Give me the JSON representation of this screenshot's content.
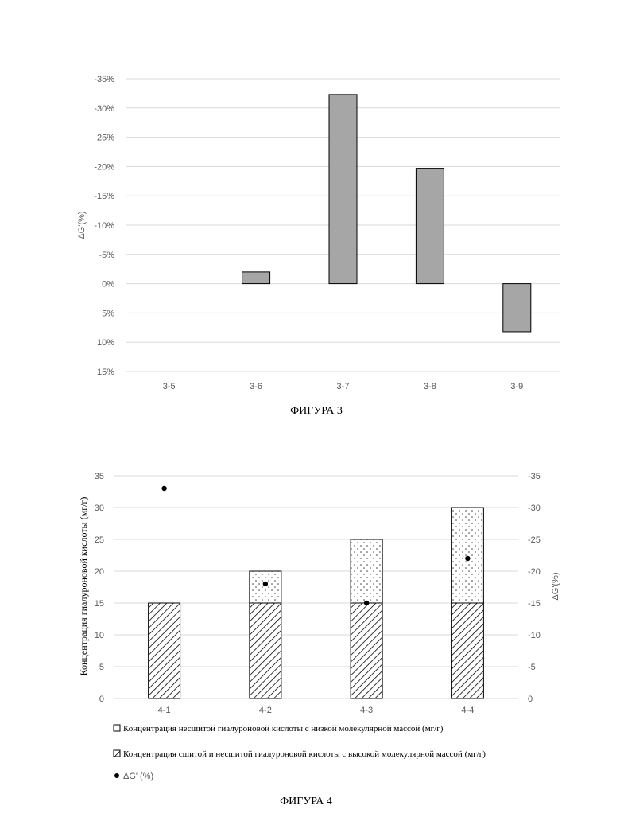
{
  "chart_data": [
    {
      "type": "bar",
      "ylabel": "ΔG'(%)",
      "categories": [
        "3-5",
        "3-6",
        "3-7",
        "3-8",
        "3-9"
      ],
      "values": [
        0,
        -2,
        -32.3,
        -19.7,
        8.2
      ],
      "yticks": [
        -35,
        -30,
        -25,
        -20,
        -15,
        -10,
        -5,
        0,
        5,
        10,
        15
      ],
      "ytick_labels": [
        "-35%",
        "-30%",
        "-25%",
        "-20%",
        "-15%",
        "-10%",
        "-5%",
        "0%",
        "5%",
        "10%",
        "15%"
      ],
      "ylim": [
        -35,
        15
      ],
      "y_inverted": true,
      "grid": true,
      "bar_color": "#a6a6a6",
      "caption": "ФИГУРА 3"
    },
    {
      "type": "bar",
      "stacked": true,
      "ylabel": "Концентрация гиалуроновой кислоты (мг/г)",
      "y2label": "ΔG'(%)",
      "categories": [
        "4-1",
        "4-2",
        "4-3",
        "4-4"
      ],
      "series": [
        {
          "name": "Концентрация сшитой и несшитой гиалуроновой кислоты с высокой молекулярной массой (мг/г)",
          "values": [
            15,
            15,
            15,
            15
          ],
          "pattern": "hatch"
        },
        {
          "name": "Концентрация несшитой гиалуроновой кислоты с низкой молекулярной массой (мг/г)",
          "values": [
            0,
            5,
            10,
            15
          ],
          "pattern": "dots"
        }
      ],
      "scatter": {
        "name": "ΔG' (%)",
        "values": [
          -33,
          -18,
          -15,
          -22
        ],
        "axis": "secondary"
      },
      "yticks": [
        0,
        5,
        10,
        15,
        20,
        25,
        30,
        35
      ],
      "ytick_labels": [
        "0",
        "5",
        "10",
        "15",
        "20",
        "25",
        "30",
        "35"
      ],
      "y2ticks": [
        0,
        -5,
        -10,
        -15,
        -20,
        -25,
        -30,
        -35
      ],
      "y2tick_labels": [
        "0",
        "-5",
        "-10",
        "-15",
        "-20",
        "-25",
        "-30",
        "-35"
      ],
      "ylim": [
        0,
        35
      ],
      "y2lim": [
        0,
        -35
      ],
      "legend_position": "bottom",
      "grid": true,
      "caption": "ФИГУРА 4"
    }
  ]
}
